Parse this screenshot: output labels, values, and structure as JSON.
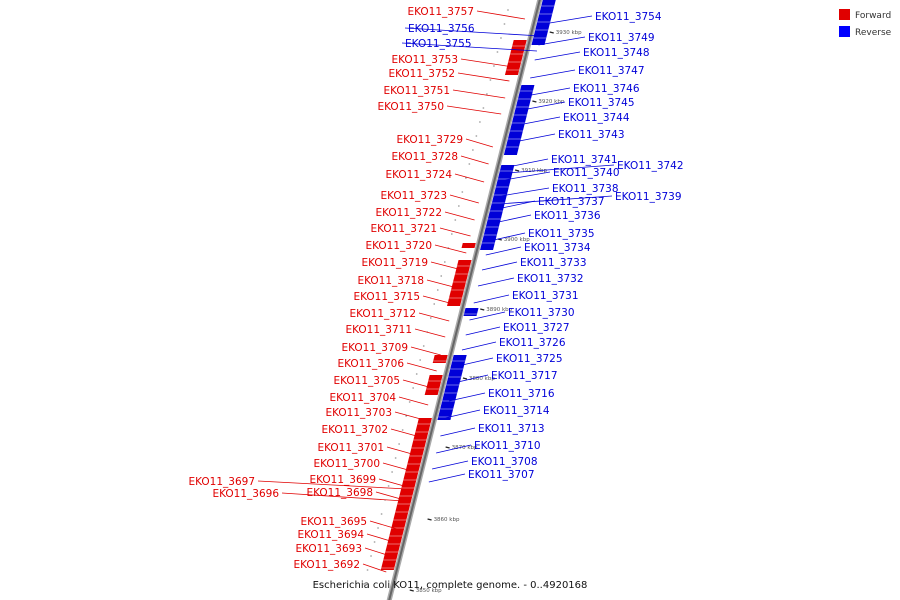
{
  "caption": "Escherichia coli KO11, complete genome. - 0..4920168",
  "legend": [
    {
      "label": "Forward",
      "color": "#e00000"
    },
    {
      "label": "Reverse",
      "color": "#0000ff"
    }
  ],
  "colors": {
    "forward": "#e00000",
    "reverse": "#0000d8",
    "backbone": "#888888"
  },
  "scale_ticks": [
    "3930 kbp",
    "3920 kbp",
    "3910 kbp",
    "3900 kbp",
    "3890 kbp",
    "3880 kbp",
    "3870 kbp",
    "3860 kbp",
    "3850 kbp"
  ],
  "forward_labels": [
    "EKO11_3757",
    "EKO11_3753",
    "EKO11_3752",
    "EKO11_3751",
    "EKO11_3750",
    "EKO11_3729",
    "EKO11_3728",
    "EKO11_3724",
    "EKO11_3723",
    "EKO11_3722",
    "EKO11_3721",
    "EKO11_3720",
    "EKO11_3719",
    "EKO11_3718",
    "EKO11_3715",
    "EKO11_3712",
    "EKO11_3711",
    "EKO11_3709",
    "EKO11_3706",
    "EKO11_3705",
    "EKO11_3704",
    "EKO11_3703",
    "EKO11_3702",
    "EKO11_3701",
    "EKO11_3700",
    "EKO11_3699",
    "EKO11_3697",
    "EKO11_3696",
    "EKO11_3698",
    "EKO11_3695",
    "EKO11_3694",
    "EKO11_3693",
    "EKO11_3692"
  ],
  "reverse_labels": [
    "EKO11_3756",
    "EKO11_3755",
    "EKO11_3754",
    "EKO11_3749",
    "EKO11_3748",
    "EKO11_3747",
    "EKO11_3746",
    "EKO11_3745",
    "EKO11_3744",
    "EKO11_3743",
    "EKO11_3741",
    "EKO11_3742",
    "EKO11_3740",
    "EKO11_3738",
    "EKO11_3739",
    "EKO11_3737",
    "EKO11_3736",
    "EKO11_3735",
    "EKO11_3734",
    "EKO11_3733",
    "EKO11_3732",
    "EKO11_3731",
    "EKO11_3730",
    "EKO11_3727",
    "EKO11_3726",
    "EKO11_3725",
    "EKO11_3717",
    "EKO11_3716",
    "EKO11_3714",
    "EKO11_3713",
    "EKO11_3710",
    "EKO11_3708",
    "EKO11_3707"
  ]
}
